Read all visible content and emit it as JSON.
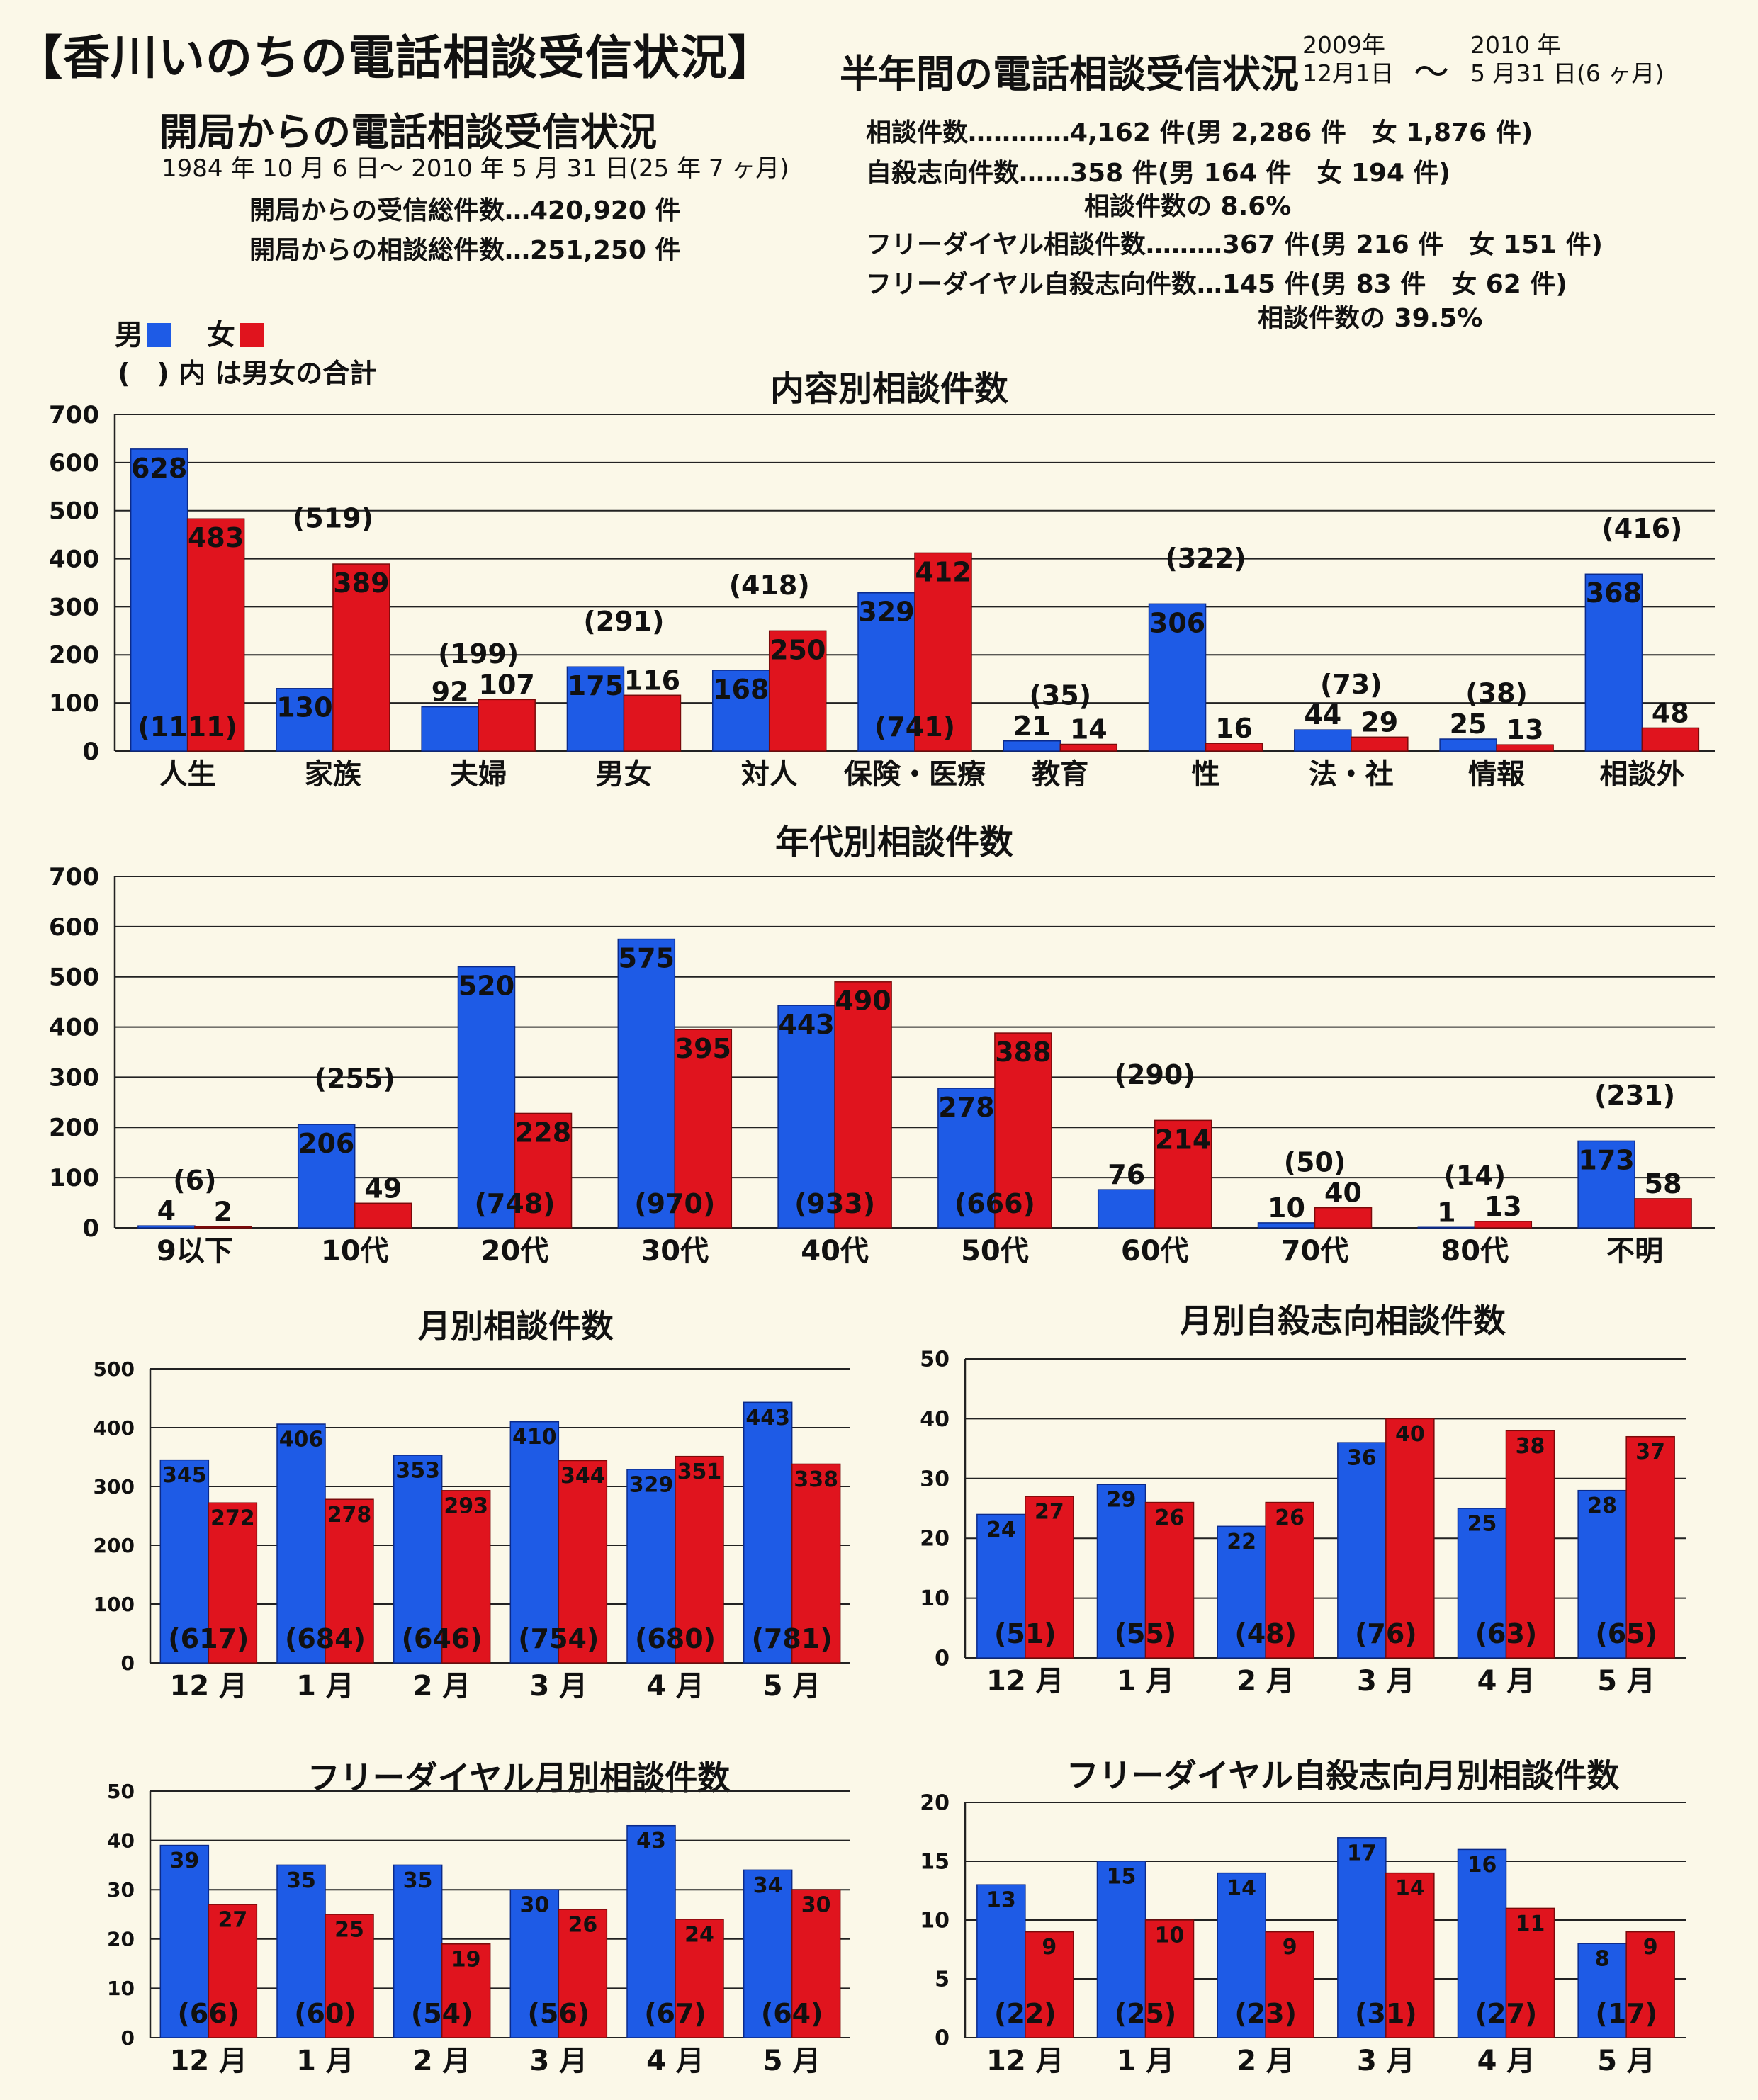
{
  "header": {
    "title": "【香川いのちの電話相談受信状況】",
    "half_year_title": "半年間の電話相談受信状況",
    "period_from_year": "2009年",
    "period_from_date": "12月1日",
    "period_tilde": "〜",
    "period_to_year": "2010 年",
    "period_to_date": "5 月31 日(6 ヶ月)"
  },
  "since_opening": {
    "title": "開局からの電話相談受信状況",
    "range": "1984 年 10 月 6 日〜 2010 年 5 月 31 日(25 年 7 ヶ月)",
    "total_received": "開局からの受信総件数…420,920 件",
    "total_consultations": "開局からの相談総件数…251,250 件"
  },
  "half_year_stats": {
    "consultations": "相談件数…………4,162 件(男 2,286 件　女 1,876 件)",
    "suicidal": "自殺志向件数……358 件(男 164 件　女 194 件)",
    "suicidal_ratio": "相談件数の 8.6%",
    "freedial": "フリーダイヤル相談件数………367 件(男 216 件　女 151 件)",
    "freedial_suicidal": "フリーダイヤル自殺志向件数…145 件(男 83 件　女 62 件)",
    "freedial_suicidal_ratio": "相談件数の 39.5%"
  },
  "legend": {
    "male": "男",
    "female": "女",
    "note": "(　) 内 は男女の合計",
    "male_color": "#1e5be6",
    "female_color": "#e0141e"
  },
  "chart_data": [
    {
      "type": "bar",
      "title": "内容別相談件数",
      "categories": [
        "人生",
        "家族",
        "夫婦",
        "男女",
        "対人",
        "保険・医療",
        "教育",
        "性",
        "法・社",
        "情報",
        "相談外"
      ],
      "series": [
        {
          "name": "男",
          "values": [
            628,
            130,
            92,
            175,
            168,
            329,
            21,
            306,
            44,
            25,
            368
          ]
        },
        {
          "name": "女",
          "values": [
            483,
            389,
            107,
            116,
            250,
            412,
            14,
            16,
            29,
            13,
            48
          ]
        }
      ],
      "totals": [
        "(1111)",
        "(519)",
        "(199)",
        "(291)",
        "(418)",
        "(741)",
        "(35)",
        "(322)",
        "(73)",
        "(38)",
        "(416)"
      ],
      "yticks": [
        0,
        100,
        200,
        300,
        400,
        500,
        600,
        700
      ],
      "ylim": [
        0,
        700
      ]
    },
    {
      "type": "bar",
      "title": "年代別相談件数",
      "categories": [
        "9以下",
        "10代",
        "20代",
        "30代",
        "40代",
        "50代",
        "60代",
        "70代",
        "80代",
        "不明"
      ],
      "series": [
        {
          "name": "男",
          "values": [
            4,
            206,
            520,
            575,
            443,
            278,
            76,
            10,
            1,
            173
          ]
        },
        {
          "name": "女",
          "values": [
            2,
            49,
            228,
            395,
            490,
            388,
            214,
            40,
            13,
            58
          ]
        }
      ],
      "totals": [
        "(6)",
        "(255)",
        "(748)",
        "(970)",
        "(933)",
        "(666)",
        "(290)",
        "(50)",
        "(14)",
        "(231)"
      ],
      "yticks": [
        0,
        100,
        200,
        300,
        400,
        500,
        600,
        700
      ],
      "ylim": [
        0,
        700
      ]
    },
    {
      "type": "bar",
      "title": "月別相談件数",
      "categories": [
        "12 月",
        "1 月",
        "2 月",
        "3 月",
        "4 月",
        "5 月"
      ],
      "series": [
        {
          "name": "男",
          "values": [
            345,
            406,
            353,
            410,
            329,
            443
          ]
        },
        {
          "name": "女",
          "values": [
            272,
            278,
            293,
            344,
            351,
            338
          ]
        }
      ],
      "totals": [
        "(617)",
        "(684)",
        "(646)",
        "(754)",
        "(680)",
        "(781)"
      ],
      "yticks": [
        0,
        100,
        200,
        300,
        400,
        500
      ],
      "ylim": [
        0,
        500
      ]
    },
    {
      "type": "bar",
      "title": "月別自殺志向相談件数",
      "categories": [
        "12 月",
        "1 月",
        "2 月",
        "3 月",
        "4 月",
        "5 月"
      ],
      "series": [
        {
          "name": "男",
          "values": [
            24,
            29,
            22,
            36,
            25,
            28
          ]
        },
        {
          "name": "女",
          "values": [
            27,
            26,
            26,
            40,
            38,
            37
          ]
        }
      ],
      "totals": [
        "(51)",
        "(55)",
        "(48)",
        "(76)",
        "(63)",
        "(65)"
      ],
      "yticks": [
        0,
        10,
        20,
        30,
        40,
        50
      ],
      "ylim": [
        0,
        50
      ]
    },
    {
      "type": "bar",
      "title": "フリーダイヤル月別相談件数",
      "categories": [
        "12 月",
        "1 月",
        "2 月",
        "3 月",
        "4 月",
        "5 月"
      ],
      "series": [
        {
          "name": "男",
          "values": [
            39,
            35,
            35,
            30,
            43,
            34
          ]
        },
        {
          "name": "女",
          "values": [
            27,
            25,
            19,
            26,
            24,
            30
          ]
        }
      ],
      "totals": [
        "(66)",
        "(60)",
        "(54)",
        "(56)",
        "(67)",
        "(64)"
      ],
      "yticks": [
        0,
        10,
        20,
        30,
        40,
        50
      ],
      "ylim": [
        0,
        50
      ]
    },
    {
      "type": "bar",
      "title": "フリーダイヤル自殺志向月別相談件数",
      "categories": [
        "12 月",
        "1 月",
        "2 月",
        "3 月",
        "4 月",
        "5 月"
      ],
      "series": [
        {
          "name": "男",
          "values": [
            13,
            15,
            14,
            17,
            16,
            8
          ]
        },
        {
          "name": "女",
          "values": [
            9,
            10,
            9,
            14,
            11,
            9
          ]
        }
      ],
      "totals": [
        "(22)",
        "(25)",
        "(23)",
        "(31)",
        "(27)",
        "(17)"
      ],
      "yticks": [
        0,
        5,
        10,
        15,
        20
      ],
      "ylim": [
        0,
        20
      ]
    }
  ]
}
